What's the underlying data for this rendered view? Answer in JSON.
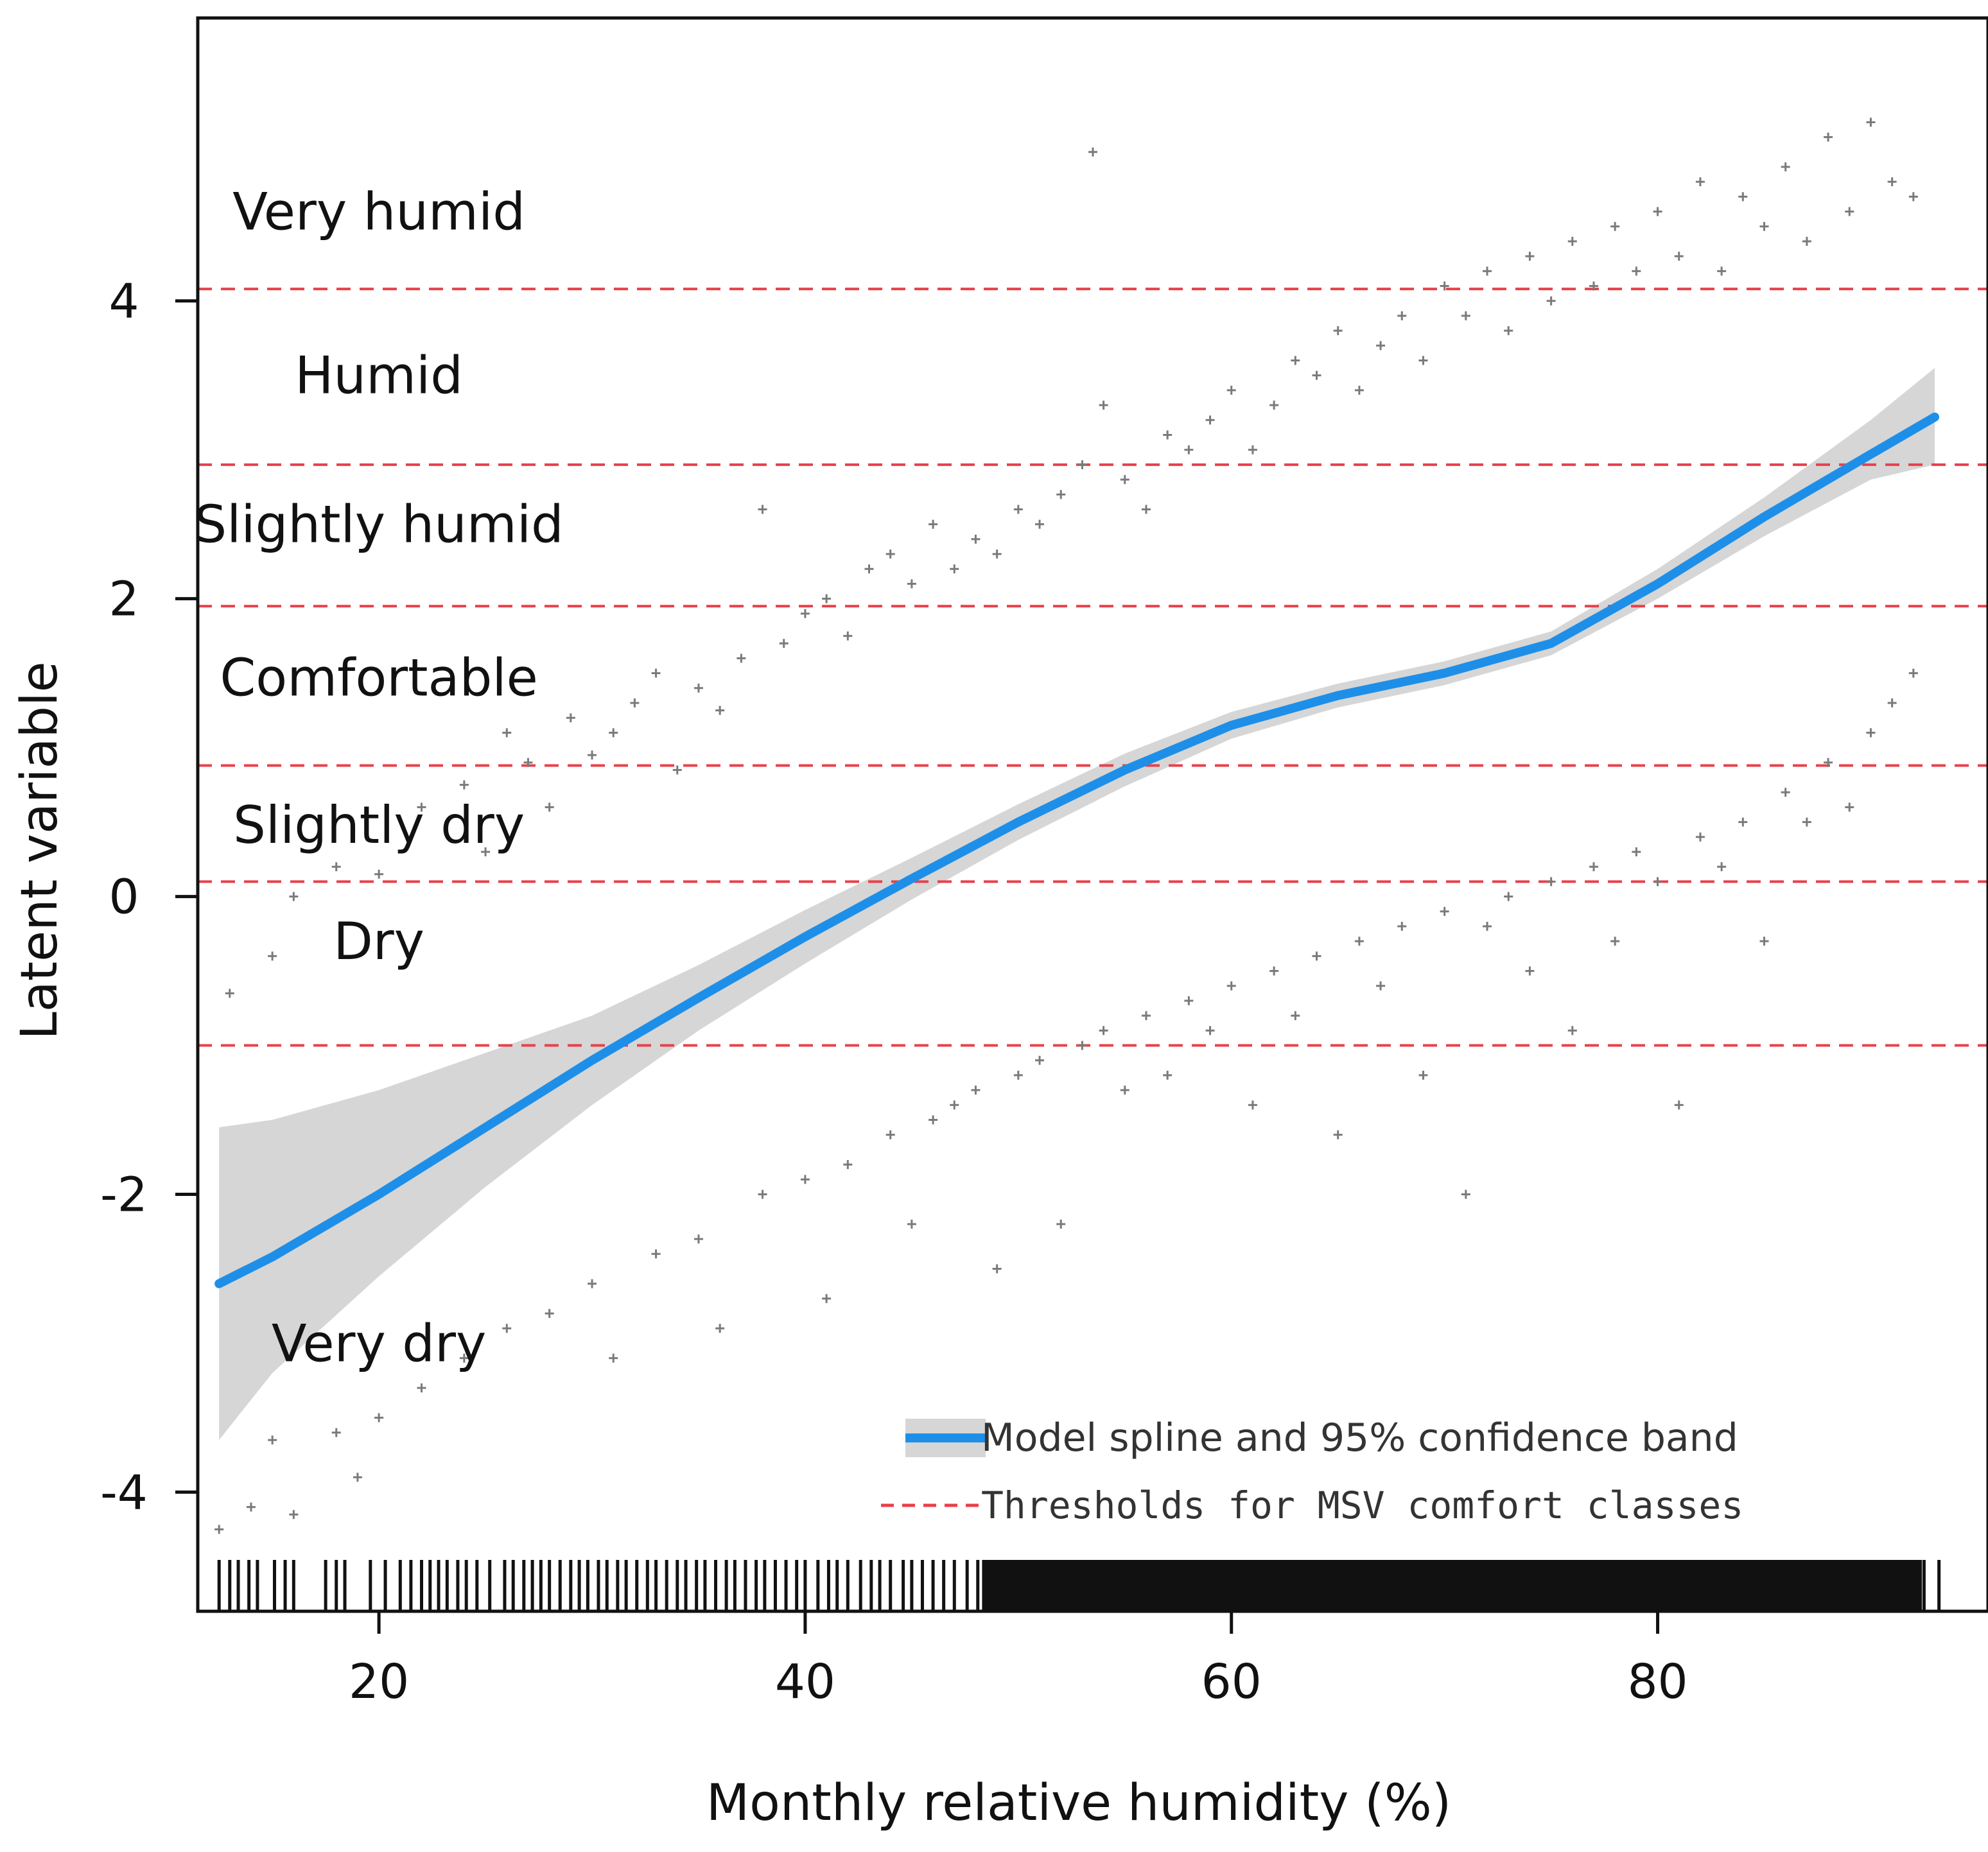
{
  "chart_data": {
    "type": "scatter",
    "xlabel": "Monthly relative humidity (%)",
    "ylabel": "Latent variable",
    "xlim": [
      11.5,
      95.5
    ],
    "ylim": [
      -4.8,
      5.9
    ],
    "xticks": [
      20,
      40,
      60,
      80
    ],
    "yticks": [
      -4,
      -2,
      0,
      2,
      4
    ],
    "grid": false,
    "legend_position": "bottom-right",
    "colors": {
      "points": "#7a7a7a",
      "spline": "#1e8fe8",
      "band": "#d6d6d6",
      "threshold": "#e8404a",
      "axis": "#111111"
    },
    "thresholds": {
      "name": "Thresholds for MSV comfort classes",
      "values": [
        4.08,
        2.9,
        1.95,
        0.88,
        0.1,
        -1.0
      ]
    },
    "comfort_classes": [
      {
        "label": "Very humid",
        "y": 4.6
      },
      {
        "label": "Humid",
        "y": 3.5
      },
      {
        "label": "Slightly humid",
        "y": 2.5
      },
      {
        "label": "Comfortable",
        "y": 1.47
      },
      {
        "label": "Slightly dry",
        "y": 0.48
      },
      {
        "label": "Dry",
        "y": -0.3
      },
      {
        "label": "Very dry",
        "y": -3.0
      }
    ],
    "spline": {
      "name": "Model spline and 95% confidence band",
      "x": [
        12.5,
        15,
        20,
        25,
        30,
        35,
        40,
        45,
        50,
        55,
        60,
        65,
        70,
        75,
        80,
        85,
        90,
        93
      ],
      "y": [
        -2.6,
        -2.42,
        -2.0,
        -1.55,
        -1.1,
        -0.68,
        -0.27,
        0.12,
        0.5,
        0.85,
        1.15,
        1.35,
        1.5,
        1.7,
        2.1,
        2.55,
        2.97,
        3.22
      ],
      "lower": [
        -3.65,
        -3.2,
        -2.55,
        -1.95,
        -1.4,
        -0.9,
        -0.45,
        -0.02,
        0.38,
        0.74,
        1.06,
        1.27,
        1.42,
        1.62,
        2.0,
        2.42,
        2.8,
        2.9
      ],
      "upper": [
        -1.55,
        -1.5,
        -1.3,
        -1.05,
        -0.8,
        -0.46,
        -0.09,
        0.26,
        0.62,
        0.96,
        1.24,
        1.43,
        1.58,
        1.78,
        2.2,
        2.68,
        3.2,
        3.55
      ]
    },
    "scatter_upper": {
      "x": [
        13,
        15,
        16,
        18,
        20,
        22,
        24,
        25,
        26,
        27,
        28,
        29,
        30,
        31,
        32,
        33,
        34,
        35,
        36,
        37,
        38,
        39,
        40,
        41,
        42,
        43,
        44,
        45,
        46,
        47,
        48,
        49,
        50,
        51,
        52,
        53,
        53.5,
        54,
        55,
        56,
        57,
        58,
        59,
        60,
        61,
        62,
        63,
        64,
        65,
        66,
        67,
        68,
        69,
        70,
        71,
        72,
        73,
        74,
        75,
        76,
        77,
        78,
        79,
        80,
        81,
        82,
        83,
        84,
        85,
        86,
        87,
        88,
        89,
        90,
        91,
        92
      ],
      "y": [
        -0.65,
        -0.4,
        0.0,
        0.2,
        0.15,
        0.6,
        0.75,
        0.3,
        1.1,
        0.9,
        0.6,
        1.2,
        0.95,
        1.1,
        1.3,
        1.5,
        0.85,
        1.4,
        1.25,
        1.6,
        2.6,
        1.7,
        1.9,
        2.0,
        1.75,
        2.2,
        2.3,
        2.1,
        2.5,
        2.2,
        2.4,
        2.3,
        2.6,
        2.5,
        2.7,
        2.9,
        5.0,
        3.3,
        2.8,
        2.6,
        3.1,
        3.0,
        3.2,
        3.4,
        3.0,
        3.3,
        3.6,
        3.5,
        3.8,
        3.4,
        3.7,
        3.9,
        3.6,
        4.1,
        3.9,
        4.2,
        3.8,
        4.3,
        4.0,
        4.4,
        4.1,
        4.5,
        4.2,
        4.6,
        4.3,
        4.8,
        4.2,
        4.7,
        4.5,
        4.9,
        4.4,
        5.1,
        4.6,
        5.2,
        4.8,
        4.7
      ]
    },
    "scatter_lower": {
      "x": [
        12.5,
        14,
        15,
        16,
        18,
        19,
        20,
        22,
        24,
        26,
        28,
        30,
        31,
        33,
        35,
        36,
        38,
        40,
        41,
        42,
        44,
        45,
        46,
        47,
        48,
        49,
        50,
        51,
        52,
        53,
        54,
        55,
        56,
        57,
        58,
        59,
        60,
        61,
        62,
        63,
        64,
        65,
        66,
        67,
        68,
        69,
        70,
        71,
        72,
        73,
        74,
        75,
        76,
        77,
        78,
        79,
        80,
        81,
        82,
        83,
        84,
        85,
        86,
        87,
        88,
        89,
        90,
        91,
        92
      ],
      "y": [
        -4.25,
        -4.1,
        -3.65,
        -4.15,
        -3.6,
        -3.9,
        -3.5,
        -3.3,
        -3.1,
        -2.9,
        -2.8,
        -2.6,
        -3.1,
        -2.4,
        -2.3,
        -2.9,
        -2.0,
        -1.9,
        -2.7,
        -1.8,
        -1.6,
        -2.2,
        -1.5,
        -1.4,
        -1.3,
        -2.5,
        -1.2,
        -1.1,
        -2.2,
        -1.0,
        -0.9,
        -1.3,
        -0.8,
        -1.2,
        -0.7,
        -0.9,
        -0.6,
        -1.4,
        -0.5,
        -0.8,
        -0.4,
        -1.6,
        -0.3,
        -0.6,
        -0.2,
        -1.2,
        -0.1,
        -2.0,
        -0.2,
        0.0,
        -0.5,
        0.1,
        -0.9,
        0.2,
        -0.3,
        0.3,
        0.1,
        -1.4,
        0.4,
        0.2,
        0.5,
        -0.3,
        0.7,
        0.5,
        0.9,
        0.6,
        1.1,
        1.3,
        1.5
      ]
    },
    "rug": {
      "x": [
        12.5,
        13,
        13.4,
        13.9,
        14.3,
        15.1,
        15.6,
        16.0,
        17.5,
        18.0,
        18.4,
        19.6,
        20.3,
        21.0,
        21.5,
        22.0,
        22.4,
        22.8,
        23.2,
        23.7,
        24.1,
        24.6,
        25.2,
        25.9,
        26.3,
        26.8,
        27.2,
        27.6,
        28.0,
        28.5,
        29.0,
        29.4,
        29.8,
        30.3,
        30.7,
        31.2,
        31.6,
        32.1,
        32.6,
        33.0,
        33.5,
        34.0,
        34.4,
        34.9,
        35.3,
        35.8,
        36.3,
        36.7,
        37.2,
        37.7,
        38.1,
        38.6,
        39.1,
        39.6,
        40.0,
        40.6,
        41.1,
        41.5,
        42.0,
        42.6,
        43.1,
        43.5,
        44.0,
        44.6,
        45.0,
        45.5,
        46.0,
        46.5,
        47.0,
        47.6,
        48.1,
        48.6,
        49.0,
        49.5,
        50.0,
        50.4,
        50.9,
        51.4,
        51.7,
        52.3,
        52.8,
        53.3,
        53.8,
        54.3,
        54.8,
        55.3,
        55.8,
        56.3,
        56.8,
        57.3,
        57.8,
        58.3,
        58.8,
        59.1,
        59.6,
        60.1,
        60.6,
        61.1,
        61.6,
        62.1,
        62.6,
        63.1,
        63.6,
        64.1,
        64.6,
        65.1,
        65.6,
        66.1,
        66.6,
        67.1,
        67.6,
        68.1,
        68.6,
        69.1,
        69.6,
        70.1,
        70.6,
        71.1,
        71.6,
        72.1,
        72.6,
        73.1,
        73.6,
        74.1,
        74.6,
        75.1,
        75.6,
        76.1,
        76.6,
        77.1,
        77.6,
        78.1,
        78.6,
        79.1,
        79.6,
        80.1,
        80.6,
        81.1,
        81.6,
        82.1,
        82.6,
        83.1,
        83.6,
        84.1,
        84.6,
        85.1,
        85.6,
        86.1,
        86.6,
        87.1,
        87.6,
        88.1,
        88.6,
        89.1,
        89.6,
        90.1,
        90.6,
        91.1,
        91.6,
        92.1,
        92.5,
        93.2
      ]
    }
  },
  "legend": {
    "spline_label": "Model spline and 95% confidence band",
    "threshold_label": "Thresholds for MSV comfort classes"
  }
}
